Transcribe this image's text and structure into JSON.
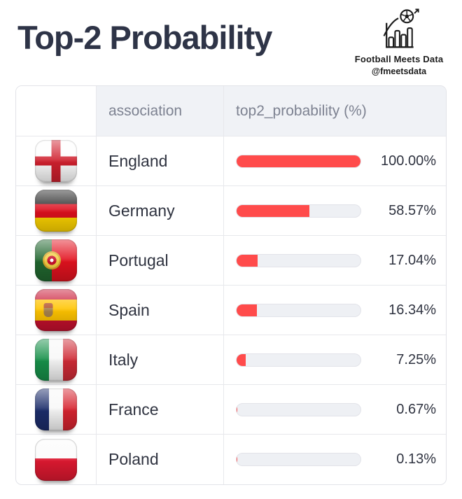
{
  "title": "Top-2 Probability",
  "brand": {
    "name": "Football Meets Data",
    "handle": "@fmeetsdata",
    "icon": "football-bar-chart-icon"
  },
  "table": {
    "columns": [
      "",
      "association",
      "top2_probability (%)"
    ],
    "rows": [
      {
        "flag": "england",
        "association": "England",
        "value": 100.0,
        "label": "100.00%"
      },
      {
        "flag": "germany",
        "association": "Germany",
        "value": 58.57,
        "label": "58.57%"
      },
      {
        "flag": "portugal",
        "association": "Portugal",
        "value": 17.04,
        "label": "17.04%"
      },
      {
        "flag": "spain",
        "association": "Spain",
        "value": 16.34,
        "label": "16.34%"
      },
      {
        "flag": "italy",
        "association": "Italy",
        "value": 7.25,
        "label": "7.25%"
      },
      {
        "flag": "france",
        "association": "France",
        "value": 0.67,
        "label": "0.67%"
      },
      {
        "flag": "poland",
        "association": "Poland",
        "value": 0.13,
        "label": "0.13%"
      }
    ]
  },
  "colors": {
    "bar_fill": "#ff4b4b",
    "bar_track": "#eef0f4",
    "header_bg": "#f0f2f6",
    "header_text": "#7d8291",
    "body_text": "#2f3340",
    "title_text": "#2e3447"
  },
  "chart_data": {
    "type": "bar",
    "orientation": "horizontal",
    "categories": [
      "England",
      "Germany",
      "Portugal",
      "Spain",
      "Italy",
      "France",
      "Poland"
    ],
    "values": [
      100.0,
      58.57,
      17.04,
      16.34,
      7.25,
      0.67,
      0.13
    ],
    "title": "Top-2 Probability",
    "xlabel": "association",
    "ylabel": "top2_probability (%)",
    "xlim": [
      0,
      100
    ],
    "grid": false,
    "legend": false,
    "bar_color": "#ff4b4b"
  }
}
